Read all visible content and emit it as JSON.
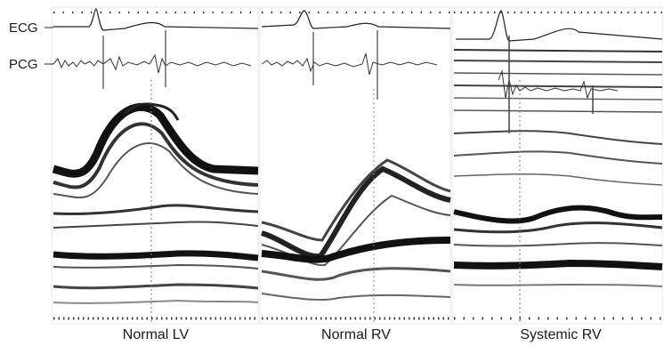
{
  "trace_labels": {
    "ecg": "ECG",
    "pcg": "PCG"
  },
  "panels": [
    {
      "label": "Normal LV"
    },
    {
      "label": "Normal RV"
    },
    {
      "label": "Systemic RV"
    }
  ],
  "colors": {
    "background": "#ffffff",
    "ink": "#111111",
    "gray": "#7a7a7a"
  }
}
